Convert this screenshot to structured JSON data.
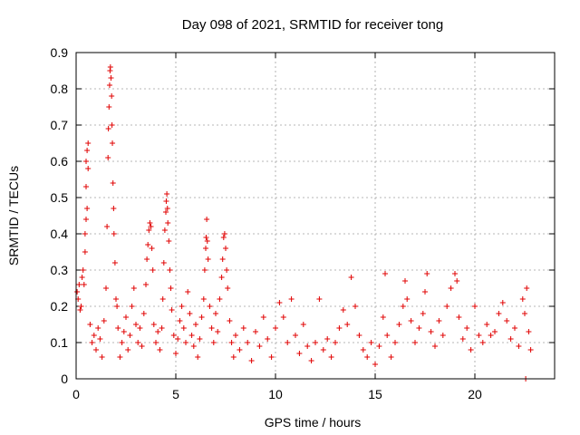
{
  "chart_data": {
    "type": "scatter",
    "title": "Day 098 of 2021, SRMTID for receiver tong",
    "xlabel": "GPS time / hours",
    "ylabel": "SRMTID / TECUs",
    "xlim": [
      0,
      24
    ],
    "ylim": [
      0,
      0.9
    ],
    "x_ticks": [
      0,
      5,
      10,
      15,
      20
    ],
    "x_tick_labels": [
      "0",
      "5",
      "10",
      "15",
      "20"
    ],
    "y_ticks": [
      0,
      0.1,
      0.2,
      0.3,
      0.4,
      0.5,
      0.6,
      0.7,
      0.8,
      0.9
    ],
    "y_tick_labels": [
      "0",
      "0.1",
      "0.2",
      "0.3",
      "0.4",
      "0.5",
      "0.6",
      "0.7",
      "0.8",
      "0.9"
    ],
    "grid": true,
    "marker": "+",
    "marker_color": "#e00000",
    "series": [
      {
        "name": "SRMTID",
        "points": [
          [
            0.05,
            0.24
          ],
          [
            0.1,
            0.22
          ],
          [
            0.15,
            0.26
          ],
          [
            0.2,
            0.19
          ],
          [
            0.25,
            0.2
          ],
          [
            0.3,
            0.28
          ],
          [
            0.35,
            0.3
          ],
          [
            0.4,
            0.26
          ],
          [
            0.45,
            0.35
          ],
          [
            0.5,
            0.44
          ],
          [
            0.5,
            0.53
          ],
          [
            0.5,
            0.6
          ],
          [
            0.55,
            0.63
          ],
          [
            0.6,
            0.65
          ],
          [
            0.6,
            0.58
          ],
          [
            0.55,
            0.47
          ],
          [
            0.45,
            0.4
          ],
          [
            0.7,
            0.15
          ],
          [
            0.8,
            0.1
          ],
          [
            0.9,
            0.12
          ],
          [
            1.0,
            0.08
          ],
          [
            1.1,
            0.14
          ],
          [
            1.2,
            0.11
          ],
          [
            1.3,
            0.06
          ],
          [
            1.4,
            0.16
          ],
          [
            1.5,
            0.25
          ],
          [
            1.55,
            0.42
          ],
          [
            1.6,
            0.61
          ],
          [
            1.62,
            0.69
          ],
          [
            1.65,
            0.75
          ],
          [
            1.68,
            0.81
          ],
          [
            1.7,
            0.85
          ],
          [
            1.72,
            0.86
          ],
          [
            1.75,
            0.83
          ],
          [
            1.78,
            0.78
          ],
          [
            1.8,
            0.7
          ],
          [
            1.82,
            0.65
          ],
          [
            1.85,
            0.54
          ],
          [
            1.88,
            0.47
          ],
          [
            1.9,
            0.4
          ],
          [
            1.95,
            0.32
          ],
          [
            2.0,
            0.22
          ],
          [
            2.05,
            0.2
          ],
          [
            2.1,
            0.14
          ],
          [
            2.2,
            0.06
          ],
          [
            2.3,
            0.1
          ],
          [
            2.4,
            0.13
          ],
          [
            2.5,
            0.17
          ],
          [
            2.6,
            0.08
          ],
          [
            2.7,
            0.12
          ],
          [
            2.8,
            0.2
          ],
          [
            2.9,
            0.25
          ],
          [
            3.0,
            0.15
          ],
          [
            3.1,
            0.1
          ],
          [
            3.2,
            0.14
          ],
          [
            3.3,
            0.09
          ],
          [
            3.4,
            0.18
          ],
          [
            3.5,
            0.26
          ],
          [
            3.55,
            0.33
          ],
          [
            3.6,
            0.37
          ],
          [
            3.65,
            0.41
          ],
          [
            3.7,
            0.43
          ],
          [
            3.75,
            0.42
          ],
          [
            3.8,
            0.36
          ],
          [
            3.85,
            0.3
          ],
          [
            3.9,
            0.15
          ],
          [
            4.0,
            0.1
          ],
          [
            4.1,
            0.13
          ],
          [
            4.2,
            0.08
          ],
          [
            4.3,
            0.14
          ],
          [
            4.35,
            0.22
          ],
          [
            4.4,
            0.32
          ],
          [
            4.45,
            0.41
          ],
          [
            4.5,
            0.46
          ],
          [
            4.52,
            0.49
          ],
          [
            4.55,
            0.51
          ],
          [
            4.58,
            0.47
          ],
          [
            4.6,
            0.43
          ],
          [
            4.65,
            0.38
          ],
          [
            4.7,
            0.3
          ],
          [
            4.75,
            0.25
          ],
          [
            4.8,
            0.19
          ],
          [
            4.9,
            0.12
          ],
          [
            5.0,
            0.07
          ],
          [
            5.1,
            0.11
          ],
          [
            5.2,
            0.16
          ],
          [
            5.3,
            0.2
          ],
          [
            5.4,
            0.14
          ],
          [
            5.5,
            0.1
          ],
          [
            5.6,
            0.24
          ],
          [
            5.7,
            0.18
          ],
          [
            5.8,
            0.12
          ],
          [
            5.9,
            0.09
          ],
          [
            6.0,
            0.15
          ],
          [
            6.1,
            0.06
          ],
          [
            6.2,
            0.11
          ],
          [
            6.3,
            0.17
          ],
          [
            6.4,
            0.22
          ],
          [
            6.45,
            0.3
          ],
          [
            6.5,
            0.36
          ],
          [
            6.52,
            0.39
          ],
          [
            6.55,
            0.44
          ],
          [
            6.58,
            0.38
          ],
          [
            6.62,
            0.33
          ],
          [
            6.7,
            0.2
          ],
          [
            6.8,
            0.14
          ],
          [
            6.9,
            0.1
          ],
          [
            7.0,
            0.18
          ],
          [
            7.1,
            0.13
          ],
          [
            7.2,
            0.22
          ],
          [
            7.3,
            0.28
          ],
          [
            7.35,
            0.33
          ],
          [
            7.4,
            0.39
          ],
          [
            7.45,
            0.4
          ],
          [
            7.5,
            0.36
          ],
          [
            7.55,
            0.3
          ],
          [
            7.6,
            0.25
          ],
          [
            7.7,
            0.16
          ],
          [
            7.8,
            0.1
          ],
          [
            7.9,
            0.06
          ],
          [
            8.0,
            0.12
          ],
          [
            8.2,
            0.08
          ],
          [
            8.4,
            0.14
          ],
          [
            8.6,
            0.1
          ],
          [
            8.8,
            0.05
          ],
          [
            9.0,
            0.13
          ],
          [
            9.2,
            0.09
          ],
          [
            9.4,
            0.17
          ],
          [
            9.6,
            0.11
          ],
          [
            9.8,
            0.06
          ],
          [
            10.0,
            0.14
          ],
          [
            10.2,
            0.21
          ],
          [
            10.4,
            0.17
          ],
          [
            10.6,
            0.1
          ],
          [
            10.8,
            0.22
          ],
          [
            11.0,
            0.12
          ],
          [
            11.2,
            0.07
          ],
          [
            11.4,
            0.15
          ],
          [
            11.6,
            0.09
          ],
          [
            11.8,
            0.05
          ],
          [
            12.0,
            0.1
          ],
          [
            12.2,
            0.22
          ],
          [
            12.4,
            0.08
          ],
          [
            12.6,
            0.11
          ],
          [
            12.8,
            0.06
          ],
          [
            13.0,
            0.1
          ],
          [
            13.2,
            0.14
          ],
          [
            13.4,
            0.19
          ],
          [
            13.6,
            0.15
          ],
          [
            13.8,
            0.28
          ],
          [
            14.0,
            0.2
          ],
          [
            14.2,
            0.12
          ],
          [
            14.4,
            0.08
          ],
          [
            14.6,
            0.06
          ],
          [
            14.8,
            0.1
          ],
          [
            15.0,
            0.04
          ],
          [
            15.2,
            0.09
          ],
          [
            15.4,
            0.17
          ],
          [
            15.5,
            0.29
          ],
          [
            15.6,
            0.12
          ],
          [
            15.8,
            0.06
          ],
          [
            16.0,
            0.1
          ],
          [
            16.2,
            0.15
          ],
          [
            16.4,
            0.2
          ],
          [
            16.5,
            0.27
          ],
          [
            16.6,
            0.22
          ],
          [
            16.8,
            0.16
          ],
          [
            17.0,
            0.1
          ],
          [
            17.2,
            0.14
          ],
          [
            17.4,
            0.18
          ],
          [
            17.5,
            0.24
          ],
          [
            17.6,
            0.29
          ],
          [
            17.8,
            0.13
          ],
          [
            18.0,
            0.09
          ],
          [
            18.2,
            0.16
          ],
          [
            18.4,
            0.12
          ],
          [
            18.6,
            0.2
          ],
          [
            18.8,
            0.25
          ],
          [
            19.0,
            0.29
          ],
          [
            19.1,
            0.27
          ],
          [
            19.2,
            0.17
          ],
          [
            19.4,
            0.11
          ],
          [
            19.6,
            0.14
          ],
          [
            19.8,
            0.08
          ],
          [
            20.0,
            0.2
          ],
          [
            20.2,
            0.12
          ],
          [
            20.4,
            0.1
          ],
          [
            20.6,
            0.15
          ],
          [
            20.8,
            0.12
          ],
          [
            21.0,
            0.13
          ],
          [
            21.2,
            0.18
          ],
          [
            21.4,
            0.21
          ],
          [
            21.6,
            0.16
          ],
          [
            21.8,
            0.11
          ],
          [
            22.0,
            0.14
          ],
          [
            22.2,
            0.09
          ],
          [
            22.4,
            0.22
          ],
          [
            22.5,
            0.18
          ],
          [
            22.6,
            0.25
          ],
          [
            22.7,
            0.13
          ],
          [
            22.8,
            0.08
          ],
          [
            22.55,
            0.0
          ]
        ]
      }
    ]
  }
}
